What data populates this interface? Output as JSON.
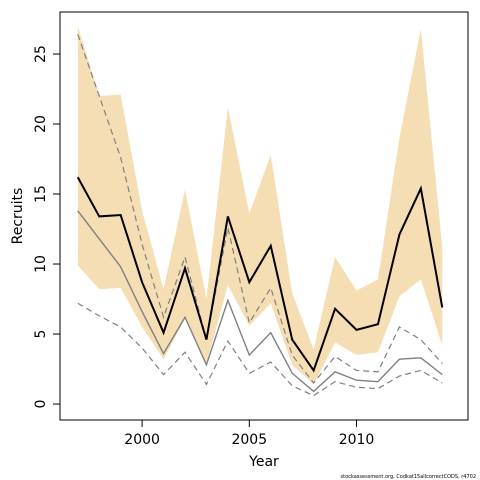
{
  "chart_data": {
    "type": "line",
    "xlabel": "Year",
    "ylabel": "Recruits",
    "footnote": "stockassessment.org, Codkat15allcorrectCODS, r4702",
    "x": [
      1997,
      1998,
      1999,
      2000,
      2001,
      2002,
      2003,
      2004,
      2005,
      2006,
      2007,
      2008,
      2009,
      2010,
      2011,
      2012,
      2013,
      2014
    ],
    "band": {
      "color": "#f5deb3",
      "lower": [
        9.9,
        8.2,
        8.3,
        5.5,
        3.2,
        6.1,
        2.9,
        8.5,
        5.6,
        7.2,
        2.8,
        1.4,
        4.4,
        3.5,
        3.7,
        7.7,
        8.9,
        4.2
      ],
      "upper": [
        27.0,
        22.0,
        22.1,
        13.8,
        8.2,
        15.3,
        7.5,
        21.2,
        13.6,
        17.8,
        7.9,
        3.9,
        10.5,
        8.1,
        8.9,
        19.0,
        26.8,
        11.2
      ]
    },
    "series": [
      {
        "color": "#808080",
        "dash": true,
        "width": 1.2,
        "values": [
          26.4,
          22.0,
          17.6,
          11.4,
          6.2,
          10.5,
          4.6,
          12.6,
          5.8,
          8.3,
          3.5,
          1.5,
          3.4,
          2.4,
          2.3,
          5.5,
          4.6,
          2.9
        ]
      },
      {
        "color": "#808080",
        "dash": true,
        "width": 1.2,
        "values": [
          7.2,
          6.3,
          5.5,
          4.0,
          2.1,
          3.7,
          1.4,
          4.5,
          2.2,
          3.0,
          1.3,
          0.6,
          1.6,
          1.2,
          1.1,
          2.0,
          2.4,
          1.5
        ]
      },
      {
        "color": "#808080",
        "dash": false,
        "width": 1.4,
        "values": [
          13.8,
          11.8,
          9.8,
          6.6,
          3.6,
          6.2,
          2.8,
          7.4,
          3.5,
          5.1,
          2.2,
          0.9,
          2.3,
          1.7,
          1.6,
          3.2,
          3.3,
          2.1
        ]
      },
      {
        "color": "#000000",
        "dash": false,
        "width": 2,
        "values": [
          16.2,
          13.4,
          13.5,
          8.7,
          5.1,
          9.7,
          4.6,
          13.4,
          8.7,
          11.3,
          4.6,
          2.4,
          6.8,
          5.3,
          5.7,
          12.1,
          15.4,
          6.9
        ]
      }
    ],
    "xlim": [
      1996.17,
      2015.2
    ],
    "xticks": [
      2000,
      2005,
      2010
    ],
    "ylim": [
      -1.14,
      28
    ],
    "yticks": [
      0,
      5,
      10,
      15,
      20,
      25
    ]
  }
}
